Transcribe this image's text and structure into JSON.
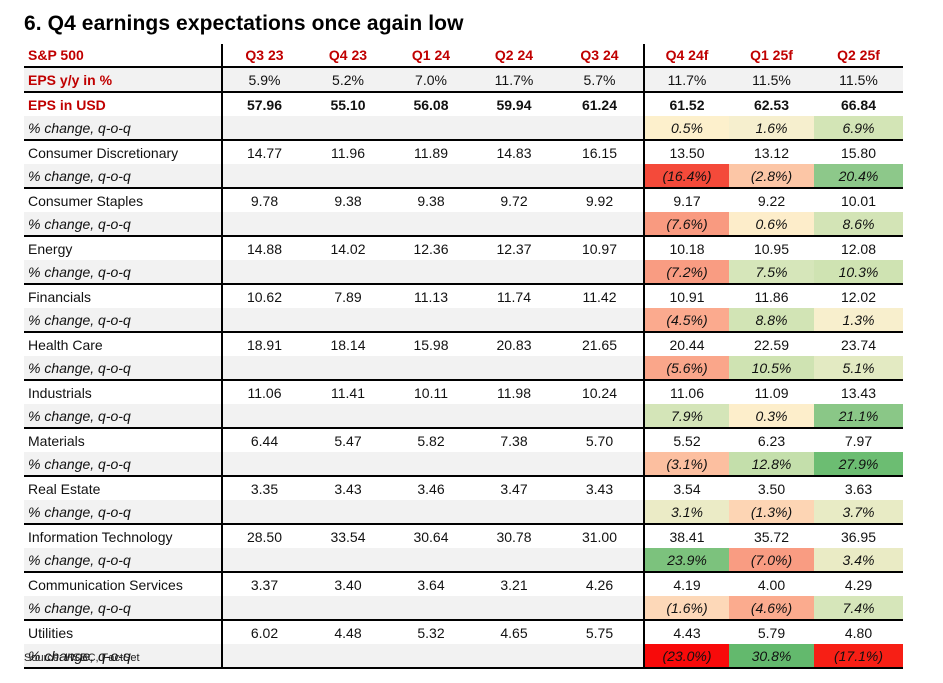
{
  "title": "6. Q4 earnings expectations once again low",
  "source": "Source: HSBC, FactSet",
  "table": {
    "corner_label": "S&P 500",
    "columns": [
      "Q3 23",
      "Q4 23",
      "Q1 24",
      "Q2 24",
      "Q3 24",
      "Q4 24f",
      "Q1 25f",
      "Q2 25f"
    ],
    "forecast_start_index": 5,
    "eps_yy": {
      "label": "EPS y/y in %",
      "values": [
        "5.9%",
        "5.2%",
        "7.0%",
        "11.7%",
        "5.7%",
        "11.7%",
        "11.5%",
        "11.5%"
      ]
    },
    "eps_usd": {
      "label": "EPS in USD",
      "values": [
        "57.96",
        "55.10",
        "56.08",
        "59.94",
        "61.24",
        "61.52",
        "62.53",
        "66.84"
      ],
      "pct_label": "% change, q-o-q",
      "pct_values": [
        "0.5%",
        "1.6%",
        "6.9%"
      ],
      "pct_colors": [
        "#fdf0cc",
        "#f6efce",
        "#d3e5b6"
      ]
    },
    "sectors": [
      {
        "name": "Consumer Discretionary",
        "values": [
          "14.77",
          "11.96",
          "11.89",
          "14.83",
          "16.15",
          "13.50",
          "13.12",
          "15.80"
        ],
        "pct_label": "% change, q-o-q",
        "pct_values": [
          "(16.4%)",
          "(2.8%)",
          "20.4%"
        ],
        "pct_colors": [
          "#f44a3a",
          "#fcc6a6",
          "#8dc88a"
        ]
      },
      {
        "name": "Consumer Staples",
        "values": [
          "9.78",
          "9.38",
          "9.38",
          "9.72",
          "9.92",
          "9.17",
          "9.22",
          "10.01"
        ],
        "pct_label": "% change, q-o-q",
        "pct_values": [
          "(7.6%)",
          "0.6%",
          "8.6%"
        ],
        "pct_colors": [
          "#f99a80",
          "#fdedca",
          "#d3e4b6"
        ]
      },
      {
        "name": "Energy",
        "values": [
          "14.88",
          "14.02",
          "12.36",
          "12.37",
          "10.97",
          "10.18",
          "10.95",
          "12.08"
        ],
        "pct_label": "% change, q-o-q",
        "pct_values": [
          "(7.2%)",
          "7.5%",
          "10.3%"
        ],
        "pct_colors": [
          "#f99c82",
          "#d6e6ba",
          "#cfe3b2"
        ]
      },
      {
        "name": "Financials",
        "values": [
          "10.62",
          "7.89",
          "11.13",
          "11.74",
          "11.42",
          "10.91",
          "11.86",
          "12.02"
        ],
        "pct_label": "% change, q-o-q",
        "pct_values": [
          "(4.5%)",
          "8.8%",
          "1.3%"
        ],
        "pct_colors": [
          "#fbaa8e",
          "#d2e4b5",
          "#f8efcd"
        ]
      },
      {
        "name": "Health Care",
        "values": [
          "18.91",
          "18.14",
          "15.98",
          "20.83",
          "21.65",
          "20.44",
          "22.59",
          "23.74"
        ],
        "pct_label": "% change, q-o-q",
        "pct_values": [
          "(5.6%)",
          "10.5%",
          "5.1%"
        ],
        "pct_colors": [
          "#faa68a",
          "#cfe3b2",
          "#e3eac2"
        ]
      },
      {
        "name": "Industrials",
        "values": [
          "11.06",
          "11.41",
          "10.11",
          "11.98",
          "10.24",
          "11.06",
          "11.09",
          "13.43"
        ],
        "pct_label": "% change, q-o-q",
        "pct_values": [
          "7.9%",
          "0.3%",
          "21.1%"
        ],
        "pct_colors": [
          "#d4e5b8",
          "#fdeecb",
          "#8ac787"
        ]
      },
      {
        "name": "Materials",
        "values": [
          "6.44",
          "5.47",
          "5.82",
          "7.38",
          "5.70",
          "5.52",
          "6.23",
          "7.97"
        ],
        "pct_label": "% change, q-o-q",
        "pct_values": [
          "(3.1%)",
          "12.8%",
          "27.9%"
        ],
        "pct_colors": [
          "#fcbfa0",
          "#c4dfab",
          "#6cbd72"
        ]
      },
      {
        "name": "Real Estate",
        "values": [
          "3.35",
          "3.43",
          "3.46",
          "3.47",
          "3.43",
          "3.54",
          "3.50",
          "3.63"
        ],
        "pct_label": "% change, q-o-q",
        "pct_values": [
          "3.1%",
          "(1.3%)",
          "3.7%"
        ],
        "pct_colors": [
          "#ebebc6",
          "#fdd5b4",
          "#e8ebc5"
        ]
      },
      {
        "name": "Information Technology",
        "values": [
          "28.50",
          "33.54",
          "30.64",
          "30.78",
          "31.00",
          "38.41",
          "35.72",
          "36.95"
        ],
        "pct_label": "% change, q-o-q",
        "pct_values": [
          "23.9%",
          "(7.0%)",
          "3.4%"
        ],
        "pct_colors": [
          "#7cc27d",
          "#f99c82",
          "#eaebc5"
        ]
      },
      {
        "name": "Communication Services",
        "values": [
          "3.37",
          "3.40",
          "3.64",
          "3.21",
          "4.26",
          "4.19",
          "4.00",
          "4.29"
        ],
        "pct_label": "% change, q-o-q",
        "pct_values": [
          "(1.6%)",
          "(4.6%)",
          "7.4%"
        ],
        "pct_colors": [
          "#fdd8b8",
          "#fbab8e",
          "#d6e6ba"
        ]
      },
      {
        "name": "Utilities",
        "values": [
          "6.02",
          "4.48",
          "5.32",
          "4.65",
          "5.75",
          "4.43",
          "5.79",
          "4.80"
        ],
        "pct_label": "% change, q-o-q",
        "pct_values": [
          "(23.0%)",
          "30.8%",
          "(17.1%)"
        ],
        "pct_colors": [
          "#f80a0a",
          "#63b96d",
          "#f71f15"
        ]
      }
    ]
  },
  "colors": {
    "header_red": "#c00000",
    "stripe_gray": "#f2f2f2"
  }
}
